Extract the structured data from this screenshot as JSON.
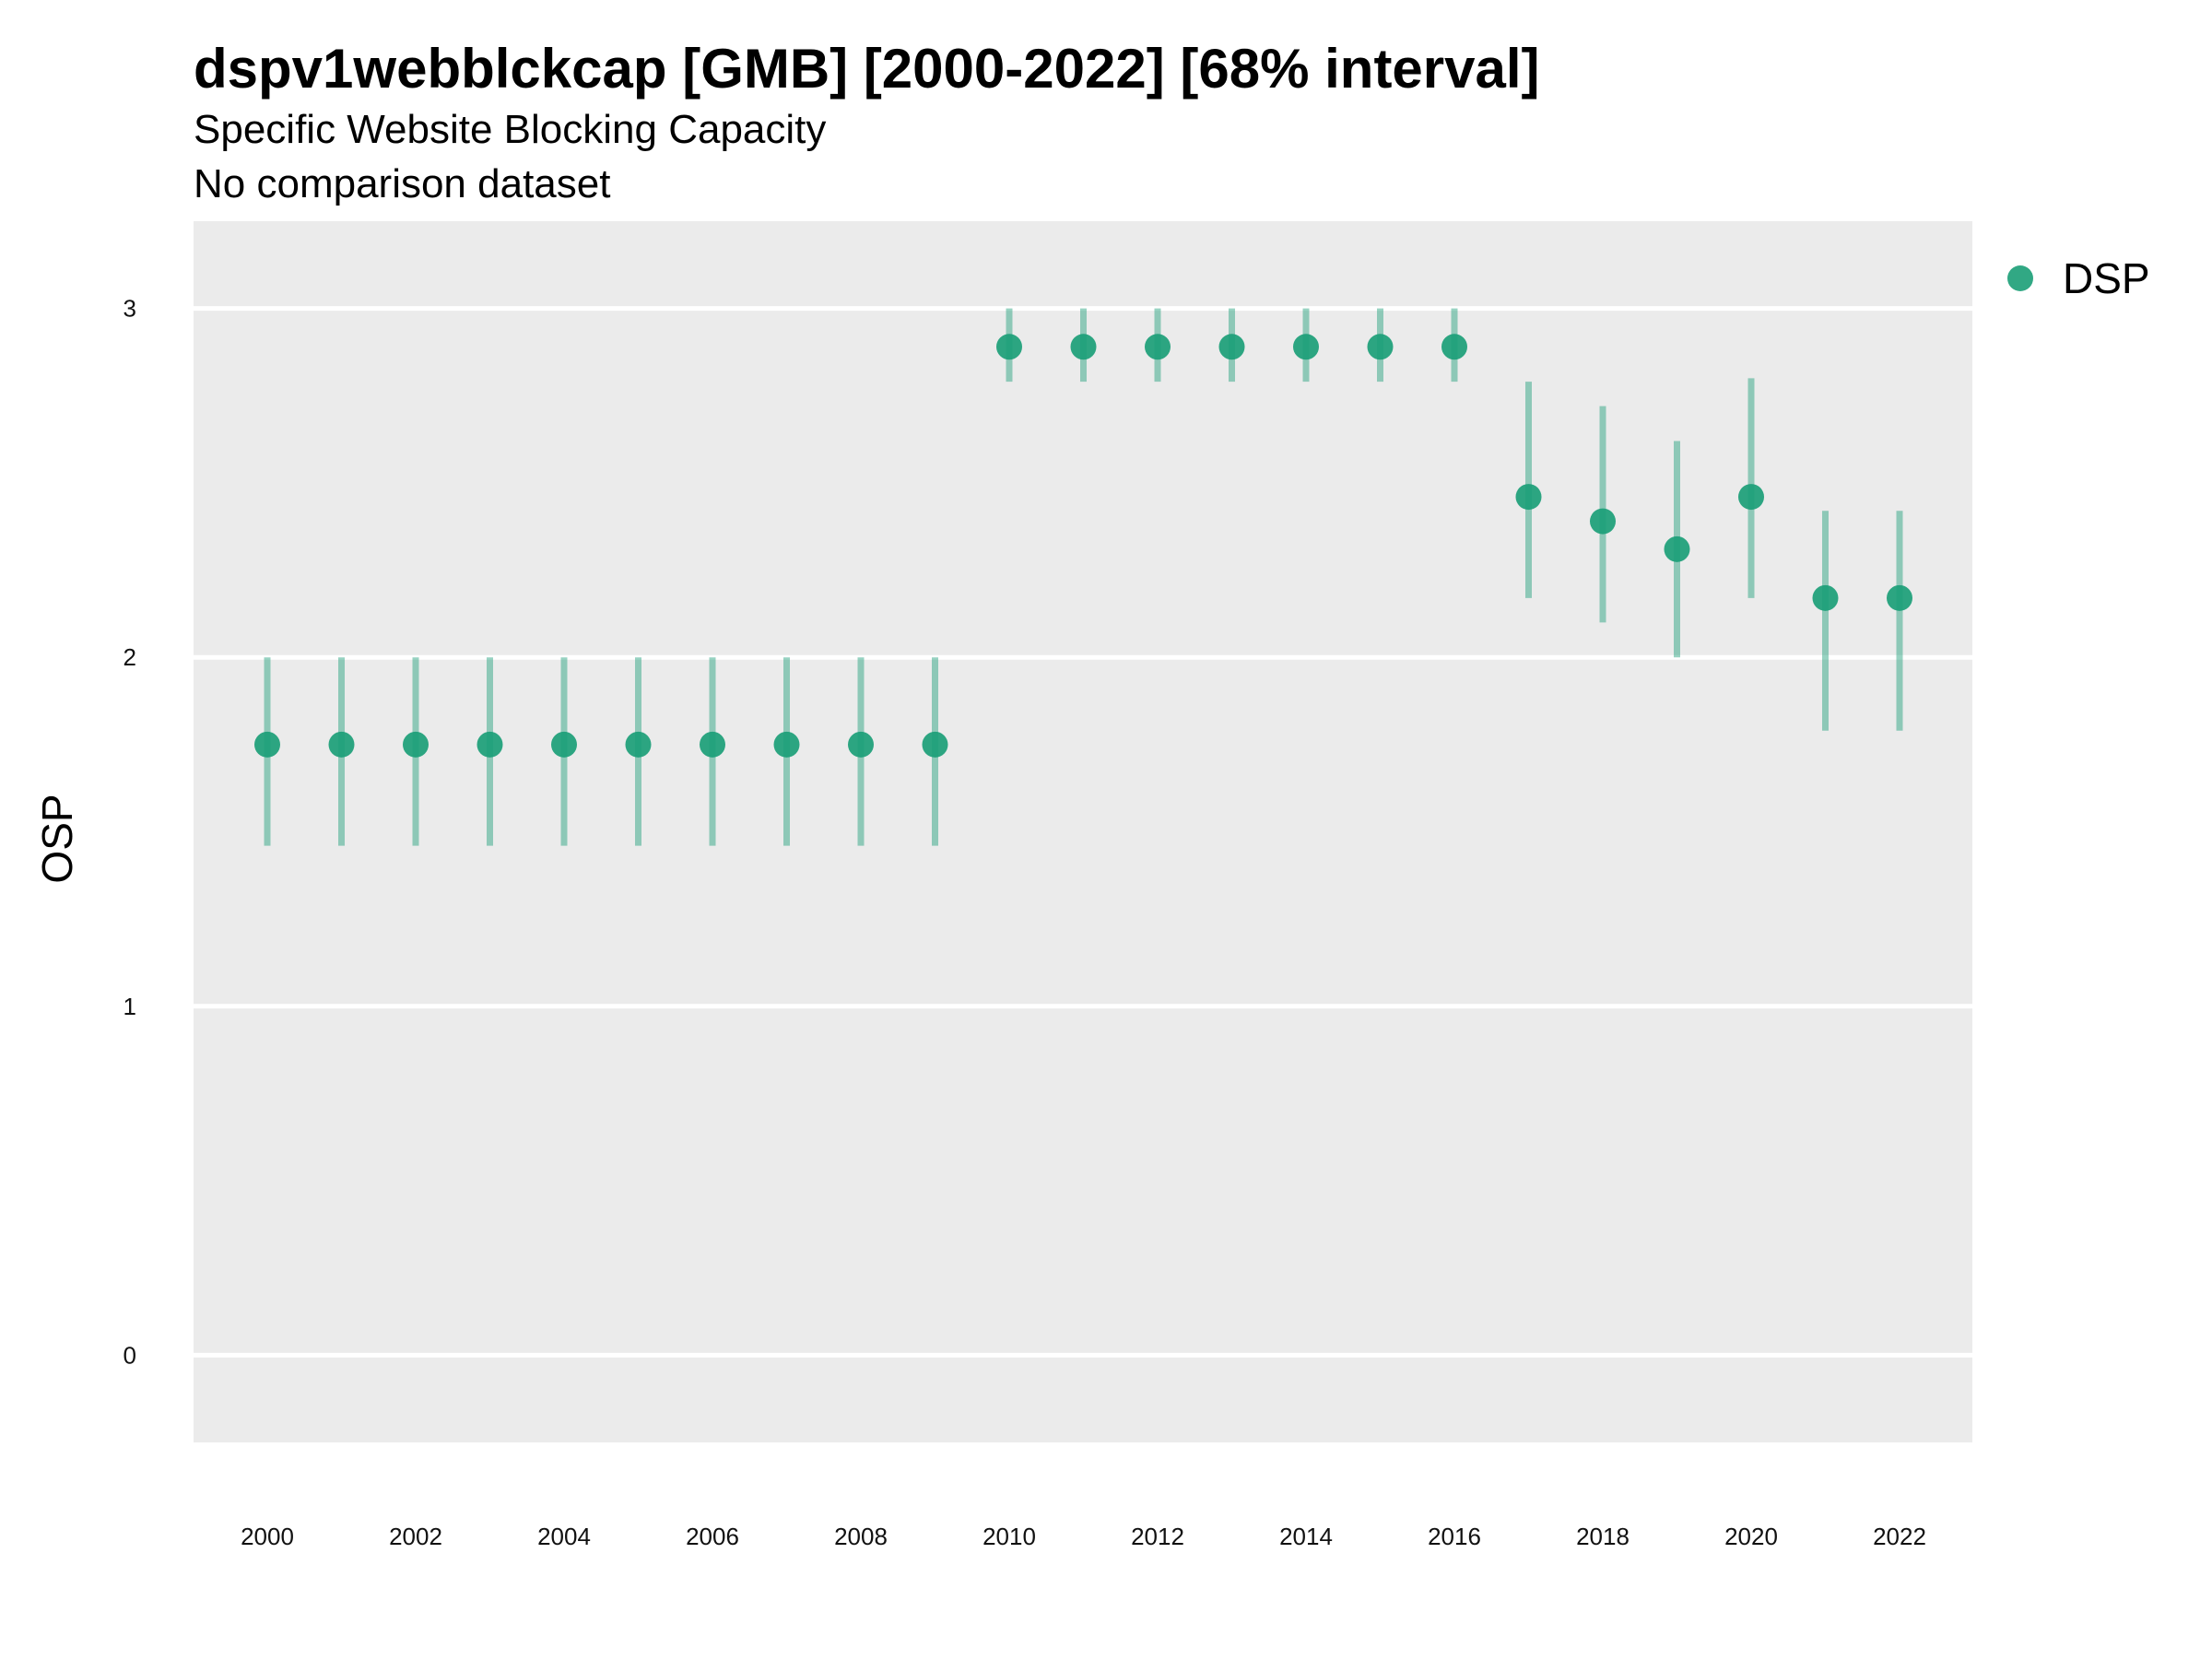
{
  "chart_data": {
    "type": "scatter",
    "title": "dspv1webblckcap [GMB] [2000-2022] [68% interval]",
    "subtitle": "Specific Website Blocking Capacity",
    "caption": "No comparison dataset",
    "xlabel": "",
    "ylabel": "OSP",
    "xlim": [
      1999,
      2023
    ],
    "ylim": [
      -0.25,
      3.25
    ],
    "x_ticks": [
      "2000",
      "2002",
      "2004",
      "2006",
      "2008",
      "2010",
      "2012",
      "2014",
      "2016",
      "2018",
      "2020",
      "2022"
    ],
    "y_ticks": [
      "0",
      "1",
      "2",
      "3"
    ],
    "grid": true,
    "legend": "right",
    "series": [
      {
        "name": "DSP",
        "color": "#1b9e77",
        "x": [
          2000,
          2001,
          2002,
          2003,
          2004,
          2005,
          2006,
          2007,
          2008,
          2009,
          2010,
          2011,
          2012,
          2013,
          2014,
          2015,
          2016,
          2017,
          2018,
          2019,
          2020,
          2021,
          2022
        ],
        "y": [
          1.75,
          1.75,
          1.75,
          1.75,
          1.75,
          1.75,
          1.75,
          1.75,
          1.75,
          1.75,
          2.89,
          2.89,
          2.89,
          2.89,
          2.89,
          2.89,
          2.89,
          2.46,
          2.39,
          2.31,
          2.46,
          2.17,
          2.17
        ],
        "lower": [
          1.46,
          1.46,
          1.46,
          1.46,
          1.46,
          1.46,
          1.46,
          1.46,
          1.46,
          1.46,
          2.79,
          2.79,
          2.79,
          2.79,
          2.79,
          2.79,
          2.79,
          2.17,
          2.1,
          2.0,
          2.17,
          1.79,
          1.79
        ],
        "upper": [
          2.0,
          2.0,
          2.0,
          2.0,
          2.0,
          2.0,
          2.0,
          2.0,
          2.0,
          2.0,
          3.0,
          3.0,
          3.0,
          3.0,
          3.0,
          3.0,
          3.0,
          2.79,
          2.72,
          2.62,
          2.8,
          2.42,
          2.42
        ]
      }
    ]
  }
}
